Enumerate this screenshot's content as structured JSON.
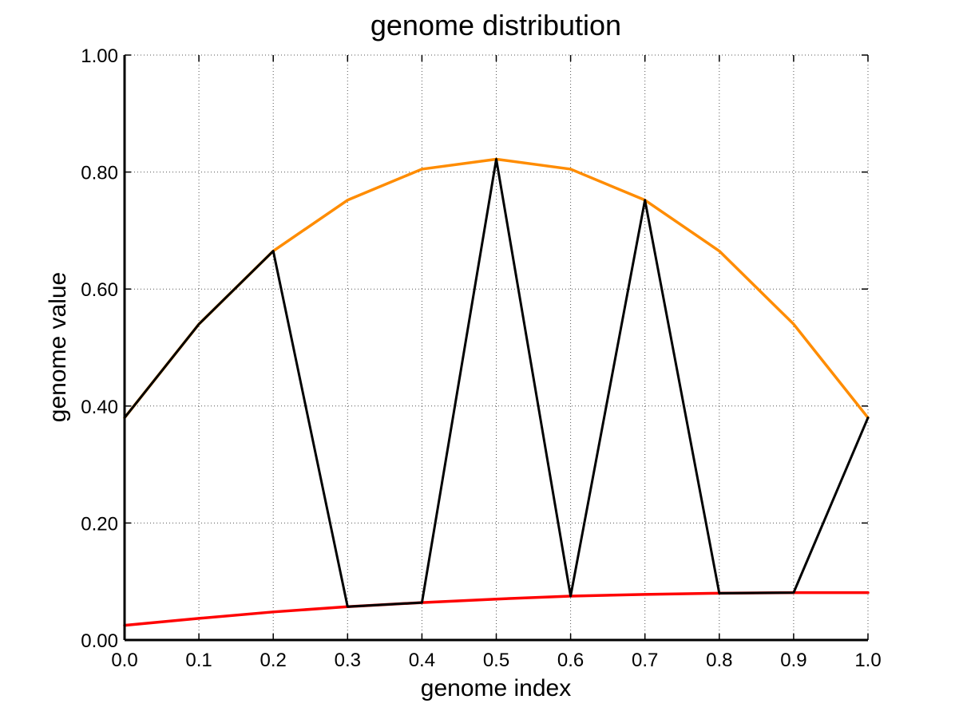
{
  "chart_data": {
    "type": "line",
    "title": "genome distribution",
    "xlabel": "genome index",
    "ylabel": "genome value",
    "xlim": [
      0.0,
      1.0
    ],
    "ylim": [
      0.0,
      1.0
    ],
    "x_ticks": [
      "0.0",
      "0.1",
      "0.2",
      "0.3",
      "0.4",
      "0.5",
      "0.6",
      "0.7",
      "0.8",
      "0.9",
      "1.0"
    ],
    "y_ticks": [
      "0.00",
      "0.20",
      "0.40",
      "0.60",
      "0.80",
      "1.00"
    ],
    "grid": true,
    "legend": false,
    "x": [
      0.0,
      0.1,
      0.2,
      0.3,
      0.4,
      0.5,
      0.6,
      0.7,
      0.8,
      0.9,
      1.0
    ],
    "series": [
      {
        "color": "#ff8c00",
        "values": [
          0.38,
          0.54,
          0.665,
          0.752,
          0.805,
          0.822,
          0.805,
          0.752,
          0.665,
          0.54,
          0.38
        ]
      },
      {
        "color": "#ff0000",
        "values": [
          0.025,
          0.037,
          0.048,
          0.057,
          0.064,
          0.07,
          0.075,
          0.078,
          0.08,
          0.081,
          0.081
        ]
      },
      {
        "color": "#000000",
        "values": [
          0.38,
          0.54,
          0.665,
          0.057,
          0.064,
          0.822,
          0.075,
          0.752,
          0.08,
          0.081,
          0.38
        ]
      }
    ]
  }
}
